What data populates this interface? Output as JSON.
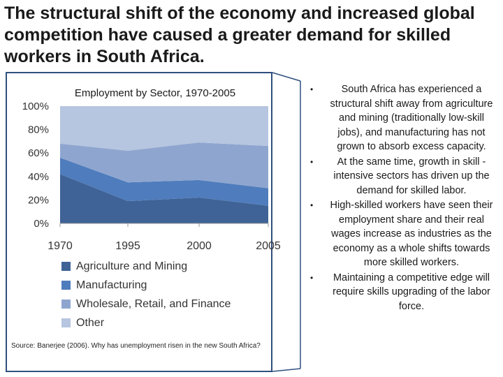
{
  "slide": {
    "title": "The structural shift of the economy and increased global competition have caused a greater demand for skilled workers in South Africa."
  },
  "chart_data": {
    "type": "area",
    "stacked": true,
    "percent": true,
    "title": "Employment by Sector, 1970-2005",
    "categories": [
      "1970",
      "1995",
      "2000",
      "2005"
    ],
    "yticks": [
      "0%",
      "20%",
      "40%",
      "60%",
      "80%",
      "100%"
    ],
    "ylim": [
      0,
      100
    ],
    "grid": false,
    "legend_position": "bottom",
    "series": [
      {
        "name": "Agriculture and Mining",
        "values": [
          42,
          19,
          22,
          15
        ],
        "color": "#3f6396"
      },
      {
        "name": "Manufacturing",
        "values": [
          14,
          16,
          15,
          15
        ],
        "color": "#4f7cbc"
      },
      {
        "name": "Wholesale, Retail, and Finance",
        "values": [
          12,
          27,
          32,
          36
        ],
        "color": "#8ea6cf"
      },
      {
        "name": "Other",
        "values": [
          32,
          38,
          31,
          34
        ],
        "color": "#b6c5e0"
      }
    ],
    "source": "Source: Banerjee (2006). Why has unemployment risen in the new South Africa?"
  },
  "bullets": [
    "South Africa has experienced a structural shift away from agriculture and mining (traditionally low-skill jobs), and manufacturing has not grown to absorb excess capacity.",
    "At the same time, growth in skill -intensive sectors has driven up the demand for skilled labor.",
    "High-skilled workers have seen their employment share and their real wages increase as industries as the economy as a whole shifts towards more skilled workers.",
    "Maintaining a competitive edge will require skills upgrading of the labor force."
  ],
  "bullet_symbol": "•"
}
